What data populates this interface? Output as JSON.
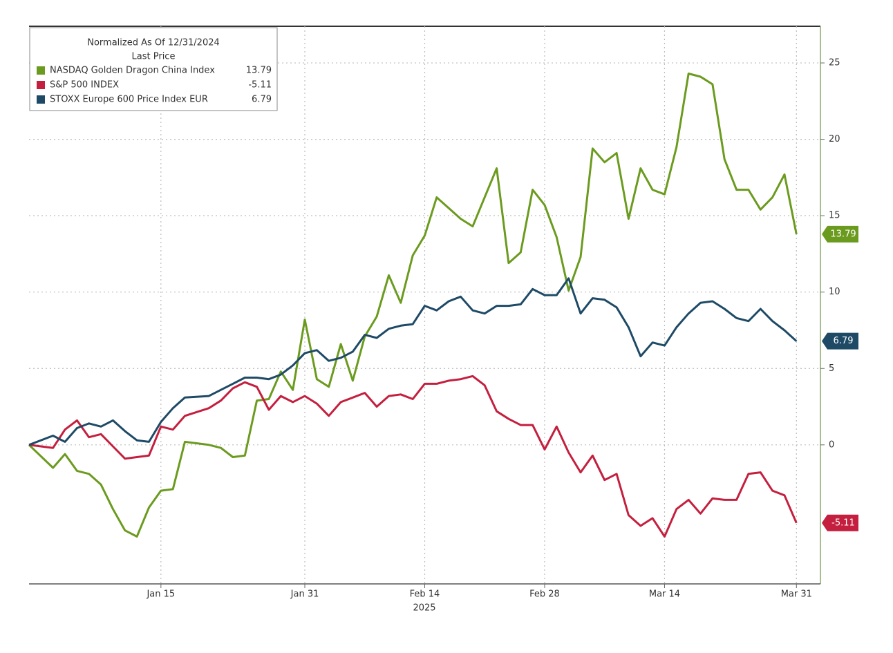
{
  "chart_data": {
    "type": "line",
    "title": "Normalized As Of 12/31/2024",
    "subtitle": "Last Price",
    "xlabel": "2025",
    "x": [
      "2024-12-31",
      "2025-01-02",
      "2025-01-03",
      "2025-01-06",
      "2025-01-07",
      "2025-01-08",
      "2025-01-09",
      "2025-01-10",
      "2025-01-13",
      "2025-01-14",
      "2025-01-15",
      "2025-01-16",
      "2025-01-17",
      "2025-01-21",
      "2025-01-22",
      "2025-01-23",
      "2025-01-24",
      "2025-01-27",
      "2025-01-28",
      "2025-01-29",
      "2025-01-30",
      "2025-01-31",
      "2025-02-03",
      "2025-02-04",
      "2025-02-05",
      "2025-02-06",
      "2025-02-07",
      "2025-02-10",
      "2025-02-11",
      "2025-02-12",
      "2025-02-13",
      "2025-02-14",
      "2025-02-17",
      "2025-02-18",
      "2025-02-19",
      "2025-02-20",
      "2025-02-21",
      "2025-02-24",
      "2025-02-25",
      "2025-02-26",
      "2025-02-27",
      "2025-02-28",
      "2025-03-03",
      "2025-03-04",
      "2025-03-05",
      "2025-03-06",
      "2025-03-07",
      "2025-03-10",
      "2025-03-11",
      "2025-03-12",
      "2025-03-13",
      "2025-03-14",
      "2025-03-17",
      "2025-03-18",
      "2025-03-19",
      "2025-03-20",
      "2025-03-21",
      "2025-03-24",
      "2025-03-25",
      "2025-03-26",
      "2025-03-27",
      "2025-03-28",
      "2025-03-31"
    ],
    "series": [
      {
        "name": "NASDAQ Golden Dragon China Index",
        "color": "#6b9b1e",
        "values": [
          0,
          -1.5,
          -0.6,
          -1.7,
          -1.9,
          -2.6,
          -4.2,
          -5.6,
          -6.0,
          -4.1,
          -3.0,
          -2.9,
          0.2,
          0,
          -0.2,
          -0.8,
          -0.7,
          2.9,
          3.0,
          4.8,
          3.6,
          8.2,
          4.3,
          3.8,
          6.6,
          4.2,
          7.1,
          8.4,
          11.1,
          9.3,
          12.4,
          13.7,
          16.2,
          15.5,
          14.8,
          14.3,
          16.2,
          18.1,
          11.9,
          12.6,
          16.7,
          15.7,
          13.6,
          10.1,
          12.3,
          19.4,
          18.5,
          19.1,
          14.8,
          18.1,
          16.7,
          16.4,
          19.5,
          24.3,
          24.1,
          23.6,
          18.7,
          16.7,
          16.7,
          15.4,
          16.2,
          17.7,
          13.79
        ]
      },
      {
        "name": "S&P 500 INDEX",
        "color": "#c41f3e",
        "values": [
          0,
          -0.2,
          1.0,
          1.6,
          0.5,
          0.7,
          -0.1,
          -0.9,
          -0.8,
          -0.7,
          1.2,
          1.0,
          1.9,
          2.4,
          2.9,
          3.7,
          4.1,
          3.8,
          2.3,
          3.2,
          2.8,
          3.2,
          2.7,
          1.9,
          2.8,
          3.1,
          3.4,
          2.5,
          3.2,
          3.3,
          3.0,
          4.0,
          4.0,
          4.2,
          4.3,
          4.5,
          3.9,
          2.2,
          1.7,
          1.3,
          1.3,
          -0.3,
          1.2,
          -0.5,
          -1.8,
          -0.7,
          -2.3,
          -1.9,
          -4.6,
          -5.3,
          -4.8,
          -6.0,
          -4.2,
          -3.6,
          -4.5,
          -3.5,
          -3.6,
          -3.6,
          -1.9,
          -1.8,
          -3.0,
          -3.3,
          -5.11
        ]
      },
      {
        "name": "STOXX Europe 600 Price Index EUR",
        "color": "#1e4a66",
        "values": [
          0,
          0.6,
          0.2,
          1.1,
          1.4,
          1.2,
          1.6,
          0.9,
          0.3,
          0.2,
          1.5,
          2.4,
          3.1,
          3.2,
          3.6,
          4.0,
          4.4,
          4.4,
          4.3,
          4.6,
          5.2,
          6.0,
          6.2,
          5.5,
          5.7,
          6.1,
          7.2,
          7.0,
          7.6,
          7.8,
          7.9,
          9.1,
          8.8,
          9.4,
          9.7,
          8.8,
          8.6,
          9.1,
          9.1,
          9.2,
          10.2,
          9.8,
          9.8,
          10.9,
          8.6,
          9.6,
          9.5,
          9.0,
          7.7,
          5.8,
          6.7,
          6.5,
          7.7,
          8.6,
          9.3,
          9.4,
          8.9,
          8.3,
          8.1,
          8.9,
          8.1,
          7.5,
          6.79
        ]
      }
    ],
    "xlim": [
      "2024-12-31",
      "2025-04-02"
    ],
    "xticks": [
      {
        "value": "2025-01-15",
        "label": "Jan 15"
      },
      {
        "value": "2025-01-31",
        "label": "Jan 31"
      },
      {
        "value": "2025-02-14",
        "label": "Feb 14"
      },
      {
        "value": "2025-02-28",
        "label": "Feb 28"
      },
      {
        "value": "2025-03-14",
        "label": "Mar 14"
      },
      {
        "value": "2025-03-31",
        "label": "Mar 31"
      }
    ],
    "ylim": [
      -9.1,
      27.4
    ],
    "yticks": [
      0,
      5,
      10,
      15,
      20,
      25
    ],
    "grid": true,
    "legend": "upper left"
  }
}
